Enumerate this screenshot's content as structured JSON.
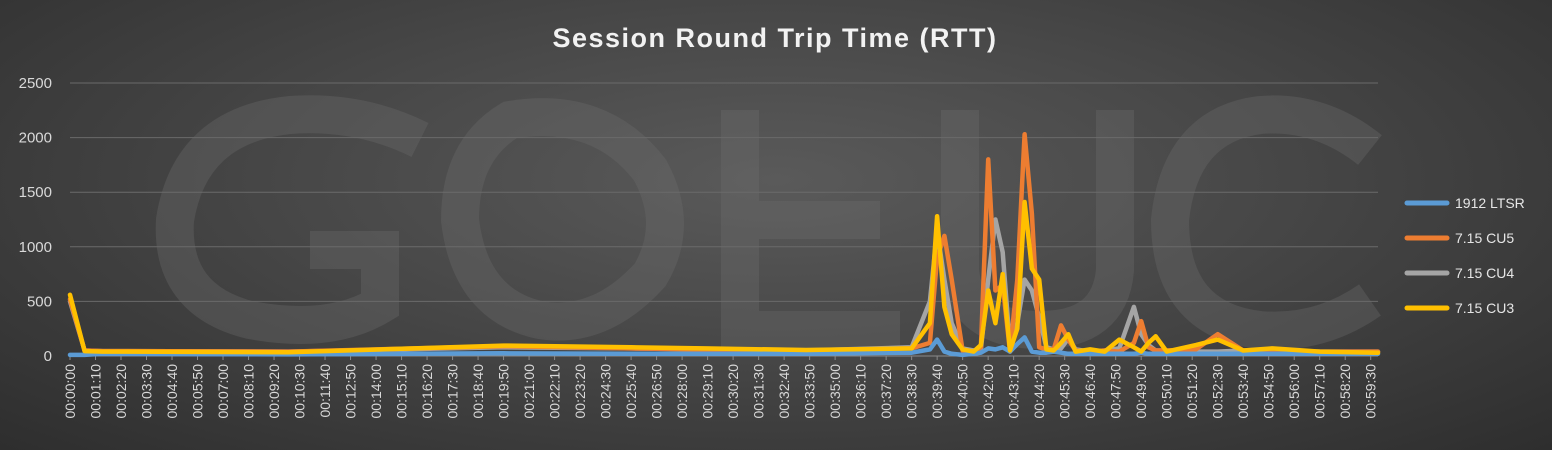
{
  "chart_data": {
    "type": "line",
    "title": "Session Round Trip Time (RTT)",
    "xlabel": "",
    "ylabel": "",
    "ylim": [
      0,
      2500
    ],
    "yticks": [
      0,
      500,
      1000,
      1500,
      2000,
      2500
    ],
    "grid": true,
    "legend_position": "right",
    "x_tick_labels": [
      "00:00:00",
      "00:01:10",
      "00:02:20",
      "00:03:30",
      "00:04:40",
      "00:05:50",
      "00:07:00",
      "00:08:10",
      "00:09:20",
      "00:10:30",
      "00:11:40",
      "00:12:50",
      "00:14:00",
      "00:15:10",
      "00:16:20",
      "00:17:30",
      "00:18:40",
      "00:19:50",
      "00:21:00",
      "00:22:10",
      "00:23:20",
      "00:24:30",
      "00:25:40",
      "00:26:50",
      "00:28:00",
      "00:29:10",
      "00:30:20",
      "00:31:30",
      "00:32:40",
      "00:33:50",
      "00:35:00",
      "00:36:10",
      "00:37:20",
      "00:38:30",
      "00:39:40",
      "00:40:50",
      "00:42:00",
      "00:43:10",
      "00:44:20",
      "00:45:30",
      "00:46:40",
      "00:47:50",
      "00:49:00",
      "00:50:10",
      "00:51:20",
      "00:52:30",
      "00:53:40",
      "00:54:50",
      "00:56:00",
      "00:57:10",
      "00:58:20",
      "00:59:30"
    ],
    "x_points": [
      "00:00:00",
      "00:00:40",
      "00:01:30",
      "00:10:00",
      "00:19:50",
      "00:25:40",
      "00:29:00",
      "00:33:40",
      "00:38:30",
      "00:39:20",
      "00:39:40",
      "00:40:00",
      "00:40:20",
      "00:40:50",
      "00:41:20",
      "00:41:40",
      "00:42:00",
      "00:42:20",
      "00:42:40",
      "00:43:00",
      "00:43:20",
      "00:43:40",
      "00:44:00",
      "00:44:20",
      "00:44:40",
      "00:45:00",
      "00:45:20",
      "00:45:40",
      "00:46:00",
      "00:46:40",
      "00:47:20",
      "00:48:00",
      "00:48:40",
      "00:49:00",
      "00:49:20",
      "00:49:40",
      "00:50:10",
      "00:51:30",
      "00:52:30",
      "00:53:40",
      "00:55:00",
      "00:57:10",
      "00:59:50"
    ],
    "series": [
      {
        "name": "1912 LTSR",
        "color": "#5b9bd5",
        "values": [
          10,
          10,
          20,
          15,
          25,
          20,
          20,
          20,
          30,
          60,
          150,
          40,
          20,
          10,
          20,
          30,
          70,
          60,
          80,
          40,
          110,
          170,
          40,
          30,
          30,
          40,
          30,
          20,
          20,
          20,
          20,
          20,
          20,
          30,
          20,
          20,
          20,
          20,
          20,
          20,
          20,
          20,
          20
        ]
      },
      {
        "name": "7.15 CU5",
        "color": "#ed7d31",
        "values": [
          520,
          50,
          45,
          40,
          90,
          70,
          60,
          50,
          70,
          120,
          900,
          1100,
          700,
          50,
          40,
          80,
          1800,
          600,
          650,
          40,
          700,
          2030,
          1300,
          80,
          60,
          60,
          280,
          150,
          50,
          40,
          50,
          40,
          120,
          320,
          80,
          50,
          50,
          60,
          200,
          50,
          40,
          40,
          40
        ]
      },
      {
        "name": "7.15 CU4",
        "color": "#a5a5a5",
        "values": [
          500,
          50,
          45,
          40,
          80,
          70,
          60,
          50,
          80,
          500,
          1150,
          700,
          300,
          70,
          50,
          60,
          700,
          1250,
          950,
          80,
          300,
          700,
          600,
          350,
          80,
          60,
          70,
          160,
          60,
          40,
          50,
          70,
          450,
          200,
          100,
          50,
          50,
          40,
          40,
          50,
          40,
          40,
          40
        ]
      },
      {
        "name": "7.15 CU3",
        "color": "#ffc000",
        "values": [
          560,
          45,
          40,
          35,
          95,
          80,
          70,
          55,
          70,
          300,
          1280,
          450,
          200,
          60,
          40,
          100,
          600,
          300,
          750,
          50,
          250,
          1410,
          800,
          700,
          60,
          50,
          120,
          200,
          40,
          60,
          40,
          150,
          80,
          40,
          120,
          180,
          40,
          100,
          150,
          50,
          70,
          40,
          30
        ]
      }
    ]
  }
}
